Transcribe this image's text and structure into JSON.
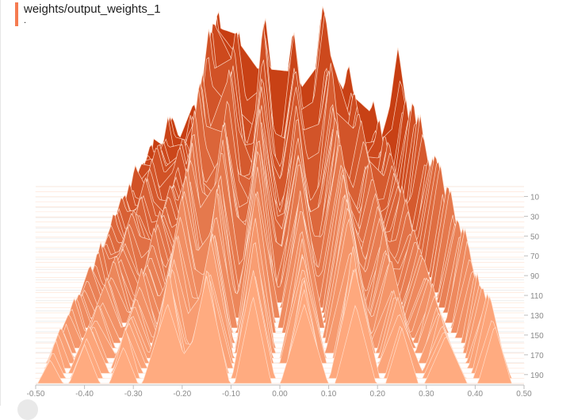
{
  "card": {
    "title": "weights/output_weights_1",
    "subtitle": ".",
    "accent_color": "#f57c51"
  },
  "chart_data": {
    "type": "histogram-ridgeline",
    "title": "weights/output_weights_1",
    "x_ticks": [
      "-0.50",
      "-0.40",
      "-0.30",
      "-0.20",
      "-0.10",
      "0.00",
      "0.10",
      "0.20",
      "0.30",
      "0.40",
      "0.50"
    ],
    "xlim": [
      -0.5,
      0.5
    ],
    "step_ticks": [
      "10",
      "30",
      "50",
      "70",
      "90",
      "110",
      "130",
      "150",
      "170",
      "190"
    ],
    "step_range": [
      0,
      199
    ],
    "color_front": "#ffab80",
    "color_back": "#c73e12",
    "peaks": [
      {
        "center": -0.47,
        "width": 0.014,
        "height": 0.18
      },
      {
        "center": -0.4,
        "width": 0.02,
        "height": 0.24
      },
      {
        "center": -0.32,
        "width": 0.02,
        "height": 0.28
      },
      {
        "center": -0.23,
        "width": 0.024,
        "height": 0.62
      },
      {
        "center": -0.15,
        "width": 0.022,
        "height": 0.6
      },
      {
        "center": -0.055,
        "width": 0.022,
        "height": 0.62
      },
      {
        "center": 0.05,
        "width": 0.022,
        "height": 0.52
      },
      {
        "center": 0.155,
        "width": 0.024,
        "height": 0.6
      },
      {
        "center": 0.25,
        "width": 0.022,
        "height": 0.38
      },
      {
        "center": 0.34,
        "width": 0.02,
        "height": 0.3
      },
      {
        "center": 0.44,
        "width": 0.018,
        "height": 0.4
      }
    ]
  }
}
